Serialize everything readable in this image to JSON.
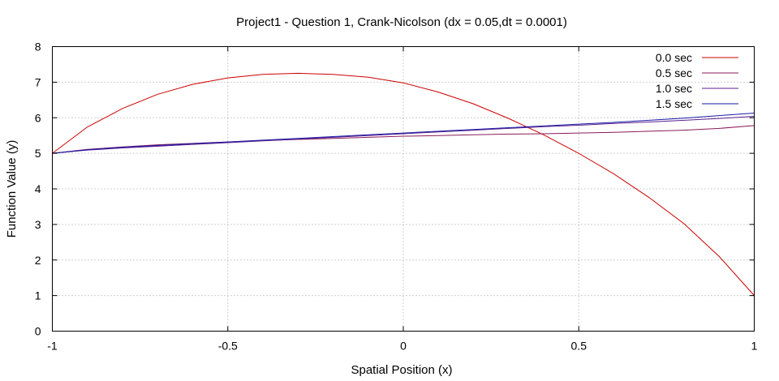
{
  "chart_data": {
    "type": "line",
    "title": "Project1 - Question 1, Crank-Nicolson (dx = 0.05,dt = 0.0001)",
    "xlabel": "Spatial Position (x)",
    "ylabel": "Function Value (y)",
    "xlim": [
      -1,
      1
    ],
    "ylim": [
      0,
      8
    ],
    "xticks": [
      -1,
      -0.5,
      0,
      0.5,
      1
    ],
    "xtick_labels": [
      "-1",
      "-0.5",
      "0",
      "0.5",
      "1"
    ],
    "yticks": [
      0,
      1,
      2,
      3,
      4,
      5,
      6,
      7,
      8
    ],
    "ytick_labels": [
      "0",
      "1",
      "2",
      "3",
      "4",
      "5",
      "6",
      "7",
      "8"
    ],
    "grid": true,
    "legend_position": "top-right",
    "x": [
      -1,
      -0.9,
      -0.8,
      -0.7,
      -0.6,
      -0.5,
      -0.4,
      -0.3,
      -0.2,
      -0.1,
      0,
      0.1,
      0.2,
      0.3,
      0.4,
      0.5,
      0.6,
      0.7,
      0.8,
      0.9,
      1
    ],
    "series": [
      {
        "name": "0.0 sec",
        "color": "#cc0000",
        "values": [
          5.0,
          5.74,
          6.26,
          6.66,
          6.94,
          7.12,
          7.22,
          7.25,
          7.22,
          7.14,
          6.98,
          6.72,
          6.39,
          5.98,
          5.52,
          5.0,
          4.42,
          3.76,
          3.02,
          2.1,
          1.0
        ]
      },
      {
        "name": "0.5 sec",
        "color": "#8b1a5a",
        "values": [
          5.0,
          5.11,
          5.18,
          5.24,
          5.28,
          5.32,
          5.36,
          5.39,
          5.42,
          5.45,
          5.48,
          5.5,
          5.52,
          5.54,
          5.55,
          5.57,
          5.59,
          5.62,
          5.65,
          5.7,
          5.78
        ]
      },
      {
        "name": "1.0 sec",
        "color": "#5a1e8e",
        "values": [
          5.0,
          5.09,
          5.15,
          5.2,
          5.25,
          5.3,
          5.35,
          5.4,
          5.45,
          5.5,
          5.55,
          5.6,
          5.65,
          5.7,
          5.75,
          5.79,
          5.84,
          5.88,
          5.93,
          5.98,
          6.04
        ]
      },
      {
        "name": "1.5 sec",
        "color": "#1a1aa6",
        "values": [
          5.0,
          5.1,
          5.17,
          5.22,
          5.27,
          5.32,
          5.37,
          5.42,
          5.47,
          5.52,
          5.57,
          5.62,
          5.67,
          5.72,
          5.77,
          5.82,
          5.87,
          5.93,
          5.99,
          6.06,
          6.13
        ]
      }
    ]
  }
}
